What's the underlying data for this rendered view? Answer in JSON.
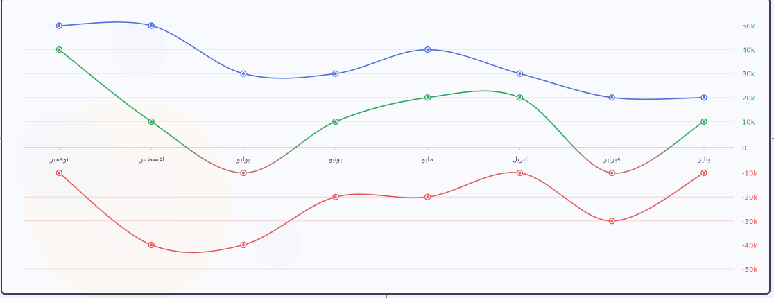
{
  "chart_data": {
    "type": "line",
    "categories": [
      "يناير",
      "فبراير",
      "ابريل",
      "مايو",
      "يونيو",
      "يوليو",
      "اغسطس",
      "نوفمبر"
    ],
    "ylim": [
      -50000,
      50000
    ],
    "y_ticks": [
      {
        "value": 50000,
        "label": "50k"
      },
      {
        "value": 40000,
        "label": "40k"
      },
      {
        "value": 30000,
        "label": "30k"
      },
      {
        "value": 20000,
        "label": "20k"
      },
      {
        "value": 10000,
        "label": "10k"
      },
      {
        "value": 0,
        "label": "0"
      },
      {
        "value": -10000,
        "label": "-10k"
      },
      {
        "value": -20000,
        "label": "-20k"
      },
      {
        "value": -30000,
        "label": "-30k"
      },
      {
        "value": -40000,
        "label": "-40k"
      },
      {
        "value": -50000,
        "label": "-50k"
      }
    ],
    "x_direction": "right-to-left",
    "y_axis_position": "right",
    "grid": true,
    "series": [
      {
        "values": [
          20000,
          20000,
          30000,
          40000,
          30000,
          30000,
          50000,
          50000
        ],
        "color": "#4f6fd8"
      },
      {
        "values": [
          10000,
          -10000,
          20000,
          20000,
          10000,
          -10000,
          10000,
          40000
        ],
        "color": "#2aa85a",
        "color_below_zero": "#c36e62"
      },
      {
        "values": [
          -10000,
          -30000,
          -10000,
          -20000,
          -20000,
          -40000,
          -40000,
          -10000
        ],
        "color": "#e15b5b"
      }
    ],
    "colors": {
      "positive_tick": "#21a153",
      "negative_tick": "#e04848",
      "zero_tick": "#444a5c"
    }
  }
}
